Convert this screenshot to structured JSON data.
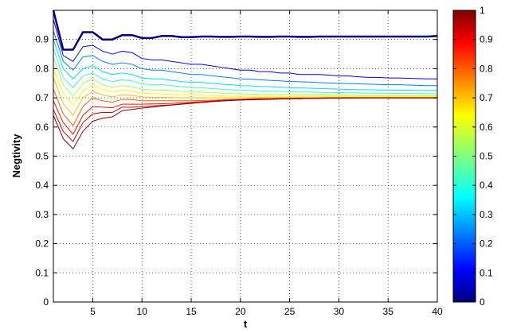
{
  "chart_data": {
    "type": "line",
    "xlabel": "t",
    "ylabel": "Negtivity",
    "xlim": [
      1,
      40
    ],
    "ylim": [
      0,
      1
    ],
    "xticks": [
      5,
      10,
      15,
      20,
      25,
      30,
      35,
      40
    ],
    "yticks": [
      0,
      0.1,
      0.2,
      0.3,
      0.4,
      0.5,
      0.6,
      0.7,
      0.8,
      0.9
    ],
    "grid": true,
    "x": [
      1,
      2,
      3,
      4,
      5,
      6,
      7,
      8,
      9,
      10,
      11,
      12,
      13,
      14,
      15,
      16,
      17,
      18,
      19,
      20,
      21,
      22,
      23,
      24,
      25,
      26,
      27,
      28,
      29,
      30,
      31,
      32,
      33,
      34,
      35,
      36,
      37,
      38,
      39,
      40
    ],
    "series": [
      {
        "color": "#00007f",
        "values": [
          1.0,
          0.865,
          0.865,
          0.925,
          0.925,
          0.9,
          0.9,
          0.915,
          0.915,
          0.905,
          0.905,
          0.912,
          0.912,
          0.908,
          0.908,
          0.91,
          0.91,
          0.909,
          0.909,
          0.91,
          0.91,
          0.909,
          0.909,
          0.91,
          0.91,
          0.909,
          0.909,
          0.91,
          0.91,
          0.91,
          0.91,
          0.91,
          0.91,
          0.91,
          0.91,
          0.91,
          0.91,
          0.91,
          0.91,
          0.912
        ]
      },
      {
        "color": "#0000ff",
        "values": [
          0.97,
          0.845,
          0.825,
          0.875,
          0.88,
          0.86,
          0.85,
          0.86,
          0.855,
          0.835,
          0.83,
          0.83,
          0.825,
          0.82,
          0.815,
          0.815,
          0.81,
          0.805,
          0.8,
          0.795,
          0.795,
          0.79,
          0.79,
          0.785,
          0.785,
          0.78,
          0.78,
          0.78,
          0.778,
          0.775,
          0.775,
          0.772,
          0.77,
          0.77,
          0.768,
          0.768,
          0.767,
          0.766,
          0.765,
          0.765
        ]
      },
      {
        "color": "#0080ff",
        "values": [
          0.93,
          0.825,
          0.795,
          0.84,
          0.845,
          0.825,
          0.815,
          0.82,
          0.815,
          0.8,
          0.795,
          0.795,
          0.79,
          0.785,
          0.78,
          0.78,
          0.776,
          0.772,
          0.769,
          0.765,
          0.764,
          0.762,
          0.76,
          0.758,
          0.756,
          0.755,
          0.754,
          0.752,
          0.751,
          0.75,
          0.749,
          0.748,
          0.747,
          0.746,
          0.745,
          0.745,
          0.744,
          0.743,
          0.742,
          0.742
        ]
      },
      {
        "color": "#00e0ff",
        "values": [
          0.9,
          0.8,
          0.765,
          0.8,
          0.81,
          0.79,
          0.78,
          0.785,
          0.78,
          0.768,
          0.765,
          0.765,
          0.76,
          0.756,
          0.753,
          0.753,
          0.75,
          0.747,
          0.745,
          0.742,
          0.741,
          0.739,
          0.738,
          0.736,
          0.735,
          0.734,
          0.733,
          0.732,
          0.731,
          0.73,
          0.729,
          0.728,
          0.728,
          0.727,
          0.727,
          0.726,
          0.726,
          0.725,
          0.725,
          0.725
        ]
      },
      {
        "color": "#40ffbf",
        "values": [
          0.87,
          0.77,
          0.735,
          0.775,
          0.785,
          0.765,
          0.755,
          0.762,
          0.758,
          0.748,
          0.745,
          0.745,
          0.742,
          0.738,
          0.735,
          0.735,
          0.732,
          0.73,
          0.728,
          0.726,
          0.725,
          0.724,
          0.723,
          0.722,
          0.721,
          0.72,
          0.72,
          0.719,
          0.718,
          0.718,
          0.717,
          0.717,
          0.716,
          0.716,
          0.716,
          0.715,
          0.715,
          0.715,
          0.714,
          0.714
        ]
      },
      {
        "color": "#a0ff60",
        "values": [
          0.84,
          0.745,
          0.705,
          0.75,
          0.765,
          0.745,
          0.735,
          0.742,
          0.738,
          0.73,
          0.727,
          0.727,
          0.725,
          0.722,
          0.72,
          0.72,
          0.718,
          0.716,
          0.715,
          0.714,
          0.713,
          0.712,
          0.712,
          0.711,
          0.711,
          0.71,
          0.71,
          0.71,
          0.709,
          0.709,
          0.709,
          0.708,
          0.708,
          0.708,
          0.708,
          0.708,
          0.707,
          0.707,
          0.707,
          0.707
        ]
      },
      {
        "color": "#ffff00",
        "values": [
          0.8,
          0.715,
          0.675,
          0.725,
          0.745,
          0.728,
          0.72,
          0.726,
          0.723,
          0.716,
          0.714,
          0.714,
          0.712,
          0.71,
          0.709,
          0.709,
          0.708,
          0.707,
          0.706,
          0.706,
          0.705,
          0.705,
          0.705,
          0.705,
          0.705,
          0.705,
          0.705,
          0.705,
          0.705,
          0.705,
          0.705,
          0.705,
          0.705,
          0.705,
          0.705,
          0.705,
          0.705,
          0.705,
          0.705,
          0.705
        ]
      },
      {
        "color": "#ffbf00",
        "values": [
          0.77,
          0.68,
          0.64,
          0.7,
          0.722,
          0.71,
          0.703,
          0.71,
          0.708,
          0.703,
          0.702,
          0.702,
          0.701,
          0.7,
          0.7,
          0.7,
          0.7,
          0.7,
          0.7,
          0.7,
          0.701,
          0.701,
          0.701,
          0.701,
          0.701,
          0.701,
          0.701,
          0.702,
          0.702,
          0.702,
          0.702,
          0.702,
          0.702,
          0.702,
          0.702,
          0.702,
          0.702,
          0.702,
          0.702,
          0.702
        ]
      },
      {
        "color": "#ff6000",
        "values": [
          0.73,
          0.645,
          0.605,
          0.67,
          0.7,
          0.69,
          0.685,
          0.695,
          0.694,
          0.69,
          0.69,
          0.69,
          0.69,
          0.69,
          0.69,
          0.691,
          0.692,
          0.693,
          0.694,
          0.695,
          0.696,
          0.697,
          0.697,
          0.698,
          0.698,
          0.699,
          0.699,
          0.699,
          0.7,
          0.7,
          0.7,
          0.7,
          0.7,
          0.7,
          0.7,
          0.7,
          0.7,
          0.7,
          0.7,
          0.7
        ]
      },
      {
        "color": "#ff1000",
        "values": [
          0.69,
          0.615,
          0.575,
          0.64,
          0.67,
          0.668,
          0.666,
          0.678,
          0.678,
          0.678,
          0.679,
          0.68,
          0.681,
          0.683,
          0.685,
          0.687,
          0.689,
          0.691,
          0.693,
          0.695,
          0.696,
          0.697,
          0.697,
          0.698,
          0.698,
          0.699,
          0.699,
          0.699,
          0.7,
          0.7,
          0.7,
          0.7,
          0.7,
          0.7,
          0.7,
          0.7,
          0.7,
          0.7,
          0.7,
          0.7
        ]
      },
      {
        "color": "#d00000",
        "values": [
          0.66,
          0.585,
          0.55,
          0.615,
          0.645,
          0.65,
          0.65,
          0.668,
          0.668,
          0.67,
          0.672,
          0.674,
          0.676,
          0.679,
          0.682,
          0.684,
          0.687,
          0.689,
          0.691,
          0.693,
          0.694,
          0.695,
          0.696,
          0.697,
          0.697,
          0.698,
          0.698,
          0.699,
          0.699,
          0.699,
          0.7,
          0.7,
          0.7,
          0.7,
          0.7,
          0.7,
          0.7,
          0.7,
          0.7,
          0.7
        ]
      },
      {
        "color": "#7f0000",
        "values": [
          0.64,
          0.56,
          0.525,
          0.585,
          0.62,
          0.63,
          0.635,
          0.656,
          0.66,
          0.665,
          0.668,
          0.672,
          0.675,
          0.678,
          0.681,
          0.684,
          0.687,
          0.689,
          0.691,
          0.692,
          0.693,
          0.694,
          0.695,
          0.696,
          0.697,
          0.697,
          0.698,
          0.698,
          0.699,
          0.699,
          0.699,
          0.7,
          0.7,
          0.7,
          0.7,
          0.7,
          0.7,
          0.7,
          0.7,
          0.7
        ]
      }
    ],
    "colorbar": {
      "min": 0,
      "max": 1,
      "ticks": [
        0,
        0.1,
        0.2,
        0.3,
        0.4,
        0.5,
        0.6,
        0.7,
        0.8,
        0.9,
        1
      ],
      "colormap": "jet"
    }
  }
}
